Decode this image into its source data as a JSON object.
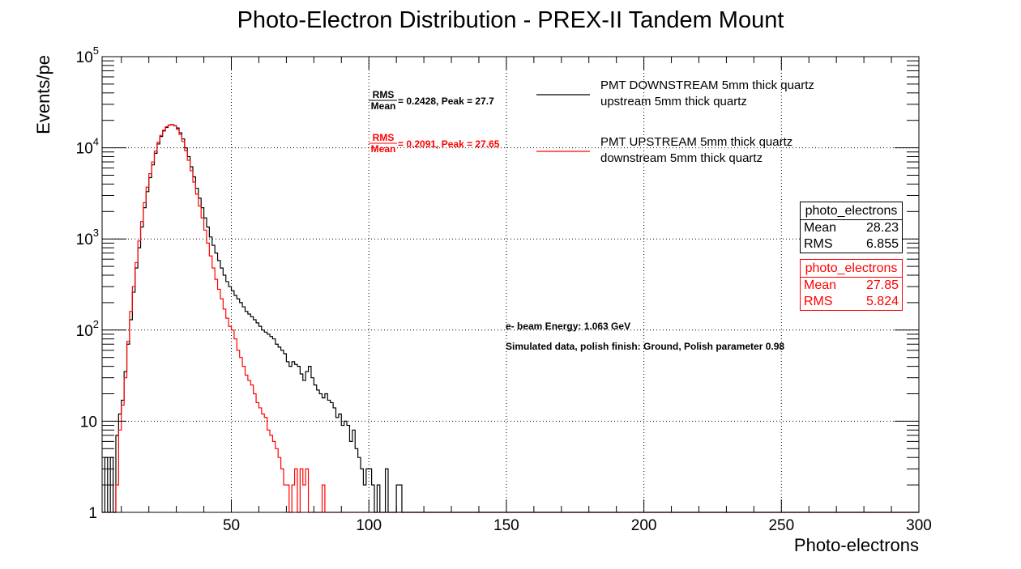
{
  "chart_data": {
    "type": "histogram",
    "title": "Photo-Electron Distribution - PREX-II Tandem Mount",
    "xlabel": "Photo-electrons",
    "ylabel": "Events/pe",
    "xlim": [
      3,
      300
    ],
    "ylim": [
      1,
      100000
    ],
    "yscale": "log",
    "grid": true,
    "bin_width": 1,
    "x_ticks": [
      50,
      100,
      150,
      200,
      250,
      300
    ],
    "y_ticks": [
      {
        "value": 1,
        "label": "1"
      },
      {
        "value": 10,
        "label": "10"
      },
      {
        "value": 100,
        "label": "10",
        "exp": "2"
      },
      {
        "value": 1000,
        "label": "10",
        "exp": "3"
      },
      {
        "value": 10000,
        "label": "10",
        "exp": "4"
      },
      {
        "value": 100000,
        "label": "10",
        "exp": "5"
      }
    ],
    "series": [
      {
        "name": "PMT DOWNSTREAM 5mm thick quartz upstream 5mm thick quartz",
        "color": "#000000",
        "points": [
          [
            3,
            1
          ],
          [
            4,
            4
          ],
          [
            5,
            1
          ],
          [
            6,
            4
          ],
          [
            7,
            1
          ],
          [
            8,
            7
          ],
          [
            9,
            12
          ],
          [
            10,
            17
          ],
          [
            11,
            35
          ],
          [
            12,
            70
          ],
          [
            13,
            130
          ],
          [
            14,
            260
          ],
          [
            15,
            480
          ],
          [
            16,
            800
          ],
          [
            17,
            1350
          ],
          [
            18,
            2200
          ],
          [
            19,
            3300
          ],
          [
            20,
            4700
          ],
          [
            21,
            6500
          ],
          [
            22,
            8700
          ],
          [
            23,
            11000
          ],
          [
            24,
            13300
          ],
          [
            25,
            15300
          ],
          [
            26,
            16700
          ],
          [
            27,
            17700
          ],
          [
            28,
            18000
          ],
          [
            29,
            17500
          ],
          [
            30,
            16500
          ],
          [
            31,
            14600
          ],
          [
            32,
            12500
          ],
          [
            33,
            10000
          ],
          [
            34,
            8000
          ],
          [
            35,
            6200
          ],
          [
            36,
            4800
          ],
          [
            37,
            3600
          ],
          [
            38,
            2800
          ],
          [
            39,
            2200
          ],
          [
            40,
            1700
          ],
          [
            41,
            1350
          ],
          [
            42,
            1050
          ],
          [
            43,
            850
          ],
          [
            44,
            700
          ],
          [
            45,
            580
          ],
          [
            46,
            480
          ],
          [
            47,
            400
          ],
          [
            48,
            340
          ],
          [
            49,
            300
          ],
          [
            50,
            270
          ],
          [
            51,
            240
          ],
          [
            52,
            220
          ],
          [
            53,
            200
          ],
          [
            54,
            180
          ],
          [
            55,
            160
          ],
          [
            56,
            150
          ],
          [
            57,
            140
          ],
          [
            58,
            130
          ],
          [
            59,
            120
          ],
          [
            60,
            110
          ],
          [
            61,
            100
          ],
          [
            62,
            95
          ],
          [
            63,
            90
          ],
          [
            64,
            85
          ],
          [
            65,
            80
          ],
          [
            66,
            70
          ],
          [
            67,
            65
          ],
          [
            68,
            60
          ],
          [
            69,
            55
          ],
          [
            70,
            45
          ],
          [
            71,
            40
          ],
          [
            72,
            45
          ],
          [
            73,
            42
          ],
          [
            74,
            40
          ],
          [
            75,
            33
          ],
          [
            76,
            28
          ],
          [
            77,
            35
          ],
          [
            78,
            40
          ],
          [
            79,
            30
          ],
          [
            80,
            25
          ],
          [
            81,
            22
          ],
          [
            82,
            20
          ],
          [
            83,
            18
          ],
          [
            84,
            20
          ],
          [
            85,
            17
          ],
          [
            86,
            16
          ],
          [
            87,
            14
          ],
          [
            88,
            11
          ],
          [
            89,
            12
          ],
          [
            90,
            9
          ],
          [
            91,
            10
          ],
          [
            92,
            9
          ],
          [
            93,
            6
          ],
          [
            94,
            8
          ],
          [
            95,
            5
          ],
          [
            96,
            4
          ],
          [
            97,
            3
          ],
          [
            98,
            2
          ],
          [
            99,
            3
          ],
          [
            100,
            3
          ],
          [
            101,
            2
          ],
          [
            102,
            1
          ],
          [
            103,
            2
          ],
          [
            104,
            1
          ],
          [
            105,
            1
          ],
          [
            106,
            3
          ],
          [
            107,
            1
          ],
          [
            108,
            1
          ],
          [
            109,
            1
          ],
          [
            110,
            2
          ],
          [
            111,
            2
          ],
          [
            112,
            1
          ]
        ]
      },
      {
        "name": "PMT UPSTREAM 5mm thick quartz downstream 5mm thick quartz",
        "color": "#ff0000",
        "points": [
          [
            3,
            1
          ],
          [
            4,
            1
          ],
          [
            5,
            1
          ],
          [
            6,
            1
          ],
          [
            7,
            1
          ],
          [
            8,
            2
          ],
          [
            9,
            8
          ],
          [
            10,
            15
          ],
          [
            11,
            30
          ],
          [
            12,
            75
          ],
          [
            13,
            160
          ],
          [
            14,
            300
          ],
          [
            15,
            550
          ],
          [
            16,
            950
          ],
          [
            17,
            1550
          ],
          [
            18,
            2500
          ],
          [
            19,
            3700
          ],
          [
            20,
            5200
          ],
          [
            21,
            7000
          ],
          [
            22,
            9200
          ],
          [
            23,
            11500
          ],
          [
            24,
            13700
          ],
          [
            25,
            15600
          ],
          [
            26,
            17000
          ],
          [
            27,
            17800
          ],
          [
            28,
            18000
          ],
          [
            29,
            17400
          ],
          [
            30,
            16000
          ],
          [
            31,
            14000
          ],
          [
            32,
            11700
          ],
          [
            33,
            9300
          ],
          [
            34,
            7300
          ],
          [
            35,
            5600
          ],
          [
            36,
            4200
          ],
          [
            37,
            3100
          ],
          [
            38,
            2300
          ],
          [
            39,
            1700
          ],
          [
            40,
            1250
          ],
          [
            41,
            900
          ],
          [
            42,
            650
          ],
          [
            43,
            480
          ],
          [
            44,
            360
          ],
          [
            45,
            280
          ],
          [
            46,
            220
          ],
          [
            47,
            170
          ],
          [
            48,
            135
          ],
          [
            49,
            110
          ],
          [
            50,
            100
          ],
          [
            51,
            80
          ],
          [
            52,
            60
          ],
          [
            53,
            50
          ],
          [
            54,
            40
          ],
          [
            55,
            32
          ],
          [
            56,
            28
          ],
          [
            57,
            25
          ],
          [
            58,
            20
          ],
          [
            59,
            16
          ],
          [
            60,
            14
          ],
          [
            61,
            12
          ],
          [
            62,
            11
          ],
          [
            63,
            8
          ],
          [
            64,
            7
          ],
          [
            65,
            6
          ],
          [
            66,
            5
          ],
          [
            67,
            4
          ],
          [
            68,
            3
          ],
          [
            69,
            2
          ],
          [
            70,
            2
          ],
          [
            71,
            1
          ],
          [
            72,
            2
          ],
          [
            73,
            3
          ],
          [
            74,
            1
          ],
          [
            75,
            3
          ],
          [
            76,
            2
          ],
          [
            77,
            3
          ],
          [
            78,
            1
          ],
          [
            79,
            1
          ],
          [
            80,
            1
          ],
          [
            81,
            1
          ],
          [
            82,
            1
          ],
          [
            83,
            2
          ],
          [
            84,
            1
          ]
        ]
      }
    ],
    "legend": {
      "placement": "top-center",
      "entries": [
        {
          "line1": "PMT DOWNSTREAM 5mm thick quartz",
          "line2": "upstream 5mm thick quartz",
          "color": "#000000"
        },
        {
          "line1": "PMT UPSTREAM 5mm thick quartz",
          "line2": "downstream 5mm thick quartz",
          "color": "#ff0000"
        }
      ]
    },
    "annotations": [
      {
        "frac_num": "RMS",
        "frac_den": "Mean",
        "text": "= 0.2428, Peak = 27.7",
        "color": "#000000"
      },
      {
        "frac_num": "RMS",
        "frac_den": "Mean",
        "text": "= 0.2091, Peak = 27.65",
        "color": "#ff0000"
      },
      {
        "text": "e- beam Energy: 1.063 GeV",
        "color": "#000000"
      },
      {
        "text": "Simulated data, polish finish: Ground, Polish parameter 0.98",
        "color": "#000000"
      }
    ],
    "stats": [
      {
        "title": "photo_electrons",
        "mean_label": "Mean",
        "mean": "28.23",
        "rms_label": "RMS",
        "rms": "6.855",
        "color": "#000000"
      },
      {
        "title": "photo_electrons",
        "mean_label": "Mean",
        "mean": "27.85",
        "rms_label": "RMS",
        "rms": "5.824",
        "color": "#ff0000"
      }
    ]
  }
}
